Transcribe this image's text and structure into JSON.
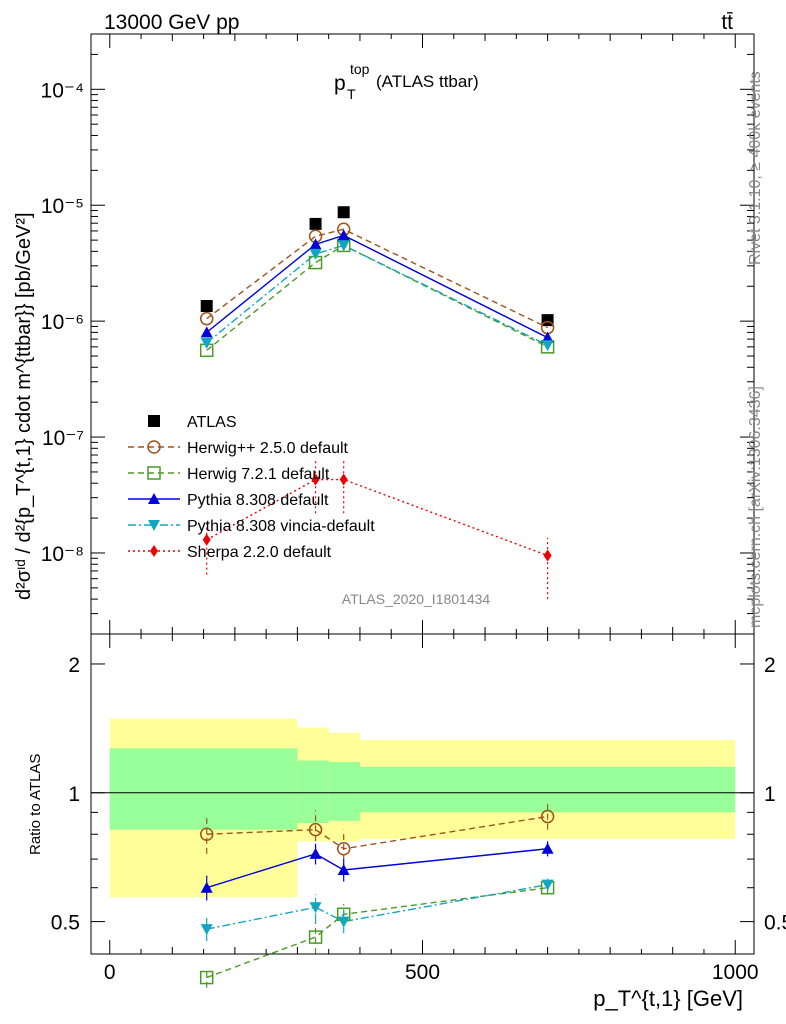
{
  "header": {
    "energy_label": "13000 GeV pp",
    "process_label": "tt̄",
    "title_main": "p",
    "title_sup": "top",
    "title_sub": "T",
    "title_suffix": "(ATLAS ttbar)",
    "watermark": "ATLAS_2020_I1801434",
    "side_label_rivet": "Rivet 3.1.10, ≥ 400k events",
    "side_label_mcplots": "mcplots.cern.ch [arXiv:1306.3436]"
  },
  "axes": {
    "main_ylabel": "d²σᶦᵈ / d²{p_T^{t,1} cdot m^{ttbar}} [pb/GeV²]",
    "ratio_ylabel": "Ratio to ATLAS",
    "xlabel": "p_T^{t,1} [GeV]",
    "x_ticks": [
      "0",
      "500",
      "1000"
    ],
    "main_y_ticks": [
      "10⁻⁴",
      "10⁻⁵",
      "10⁻⁶",
      "10⁻⁷",
      "10⁻⁸"
    ],
    "ratio_y_ticks": [
      "0.5",
      "1",
      "2"
    ]
  },
  "chart_data": {
    "type": "scatter",
    "title": "p_T^top (ATLAS ttbar)",
    "xlabel": "p_T^{t,1} [GeV]",
    "ylabel": "d²σ/d²{p_T^{t,1} cdot m^{ttbar}} [pb/GeV²]",
    "xlim": [
      -30,
      1030
    ],
    "ylim": [
      2e-09,
      0.0003
    ],
    "yscale": "log",
    "ratio_ylim": [
      0.42,
      2.35
    ],
    "ratio_ylabel": "Ratio to ATLAS",
    "bands": [
      {
        "x_range": [
          0,
          300
        ],
        "green": [
          0.82,
          1.27
        ],
        "yellow": [
          0.57,
          1.49
        ]
      },
      {
        "x_range": [
          300,
          350
        ],
        "green": [
          0.85,
          1.19
        ],
        "yellow": [
          0.77,
          1.42
        ]
      },
      {
        "x_range": [
          350,
          400
        ],
        "green": [
          0.86,
          1.18
        ],
        "yellow": [
          0.77,
          1.38
        ]
      },
      {
        "x_range": [
          400,
          1000
        ],
        "green": [
          0.9,
          1.15
        ],
        "yellow": [
          0.78,
          1.33
        ]
      }
    ],
    "series": [
      {
        "name": "ATLAS",
        "color": "#000000",
        "marker": "square",
        "line": "none",
        "x": [
          155,
          329,
          374,
          700
        ],
        "y": [
          1.35e-06,
          6.9e-06,
          8.7e-06,
          1.02e-06
        ],
        "ratio": null
      },
      {
        "name": "Herwig++ 2.5.0 default",
        "color": "#a0521c",
        "marker": "circle-open",
        "line": "dashed",
        "x": [
          155,
          329,
          374,
          700
        ],
        "y": [
          1.05e-06,
          5.4e-06,
          6.2e-06,
          8.8e-07
        ],
        "ratio": [
          0.8,
          0.82,
          0.74,
          0.88
        ],
        "ratio_err": [
          0.08,
          0.09,
          0.08,
          0.06
        ]
      },
      {
        "name": "Herwig 7.2.1 default",
        "color": "#4a9a26",
        "marker": "square-open",
        "line": "dashed",
        "x": [
          155,
          329,
          374,
          700
        ],
        "y": [
          5.6e-07,
          3.2e-06,
          4.5e-06,
          6e-07
        ],
        "ratio": [
          0.37,
          0.46,
          0.52,
          0.6
        ],
        "ratio_err": [
          0.02,
          0.04,
          0.03,
          0.02
        ]
      },
      {
        "name": "Pythia 8.308 default",
        "color": "#0000dd",
        "marker": "triangle-up",
        "line": "solid",
        "x": [
          155,
          329,
          374,
          700
        ],
        "y": [
          8e-07,
          4.6e-06,
          5.5e-06,
          7.2e-07
        ],
        "ratio": [
          0.6,
          0.72,
          0.66,
          0.74
        ],
        "ratio_err": [
          0.04,
          0.04,
          0.04,
          0.03
        ]
      },
      {
        "name": "Pythia 8.308 vincia-default",
        "color": "#13a6c0",
        "marker": "triangle-down",
        "line": "dashdot",
        "x": [
          155,
          329,
          374,
          700
        ],
        "y": [
          6.5e-07,
          3.8e-06,
          4.5e-06,
          6.2e-07
        ],
        "ratio": [
          0.48,
          0.54,
          0.5,
          0.61
        ],
        "ratio_err": [
          0.03,
          0.04,
          0.03,
          0.02
        ]
      },
      {
        "name": "Sherpa 2.2.0 default",
        "color": "#ee0000",
        "marker": "diamond",
        "line": "dotted",
        "x": [
          155,
          329,
          374,
          700
        ],
        "y": [
          1.3e-08,
          4.3e-08,
          4.3e-08,
          9.5e-09
        ],
        "y_err_low": [
          6.5e-09,
          2.2e-08,
          2.2e-08,
          4e-09
        ],
        "y_err_high": [
          1.9e-08,
          6.5e-08,
          6.5e-08,
          1.35e-08
        ],
        "ratio": null
      }
    ]
  },
  "legend": {
    "entries": [
      "ATLAS",
      "Herwig++ 2.5.0 default",
      "Herwig 7.2.1 default",
      "Pythia 8.308 default",
      "Pythia 8.308 vincia-default",
      "Sherpa 2.2.0 default"
    ]
  }
}
